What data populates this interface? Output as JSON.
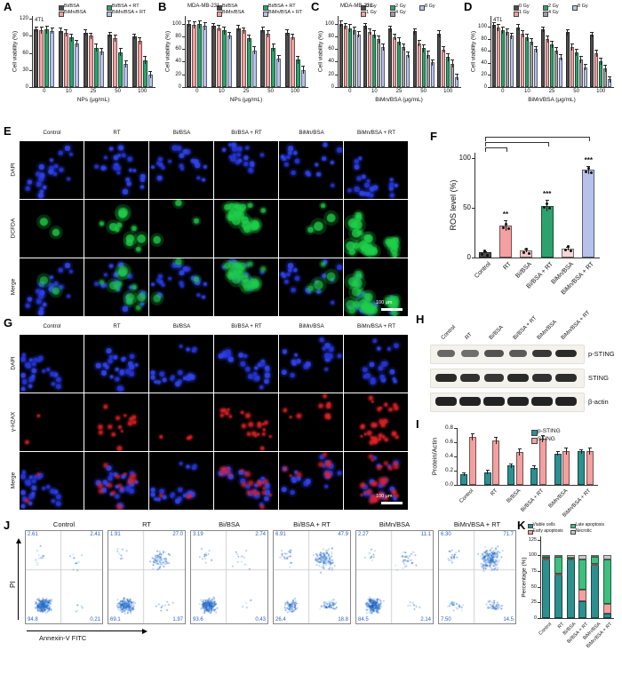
{
  "letters": {
    "A": "A",
    "B": "B",
    "C": "C",
    "D": "D",
    "E": "E",
    "F": "F",
    "G": "G",
    "H": "H",
    "I": "I",
    "J": "J",
    "K": "K"
  },
  "chart_data": [
    {
      "id": "A",
      "type": "bar",
      "title": "4T1",
      "xlabel": "NPs (μg/mL)",
      "ylabel": "Cell viability (%)",
      "ylim": [
        0,
        125
      ],
      "yticks": [
        0,
        30,
        60,
        90,
        120
      ],
      "categories": [
        "0",
        "10",
        "25",
        "50",
        "100"
      ],
      "series": [
        {
          "name": "Bi/BSA",
          "color": "#4d4d4d",
          "values": [
            102,
            99,
            96,
            92,
            89
          ],
          "err": 5
        },
        {
          "name": "BiMn/BSA",
          "color": "#f2a0a0",
          "values": [
            100,
            95,
            90,
            86,
            81
          ],
          "err": 6
        },
        {
          "name": "Bi/BSA + RT",
          "color": "#2ea26e",
          "values": [
            101,
            87,
            69,
            61,
            47
          ],
          "err": 7
        },
        {
          "name": "BiMn/BSA + RT",
          "color": "#b7c1ea",
          "values": [
            99,
            77,
            62,
            41,
            22
          ],
          "err": 6
        }
      ]
    },
    {
      "id": "B",
      "type": "bar",
      "title": "MDA-MB-231",
      "xlabel": "NPs (μg/mL)",
      "ylabel": "Cell viability (%)",
      "ylim": [
        0,
        112
      ],
      "yticks": [
        0,
        20,
        40,
        60,
        80,
        100
      ],
      "categories": [
        "0",
        "10",
        "25",
        "50",
        "100"
      ],
      "series": [
        {
          "name": "Bi/BSA",
          "color": "#4d4d4d",
          "values": [
            100,
            96,
            93,
            90,
            86
          ],
          "err": 5
        },
        {
          "name": "BiMn/BSA",
          "color": "#f2a0a0",
          "values": [
            98,
            93,
            89,
            84,
            79
          ],
          "err": 5
        },
        {
          "name": "Bi/BSA + RT",
          "color": "#2ea26e",
          "values": [
            99,
            89,
            77,
            62,
            43
          ],
          "err": 6
        },
        {
          "name": "BiMn/BSA + RT",
          "color": "#b7c1ea",
          "values": [
            96,
            81,
            58,
            45,
            27
          ],
          "err": 6
        }
      ]
    },
    {
      "id": "C",
      "type": "bar",
      "title": "MDA-MB-231",
      "xlabel": "BiMn/BSA (μg/mL)",
      "ylabel": "Cell viability (%)",
      "ylim": [
        0,
        112
      ],
      "yticks": [
        0,
        20,
        40,
        60,
        80,
        100
      ],
      "categories": [
        "0",
        "10",
        "25",
        "50",
        "100"
      ],
      "series": [
        {
          "name": "0 Gy",
          "color": "#4d4d4d",
          "values": [
            100,
            96,
            92,
            88,
            84
          ],
          "err": 5
        },
        {
          "name": "1 Gy",
          "color": "#f2a0a0",
          "values": [
            96,
            87,
            79,
            69,
            59
          ],
          "err": 5
        },
        {
          "name": "2 Gy",
          "color": "#2ea26e",
          "values": [
            93,
            83,
            72,
            61,
            47
          ],
          "err": 6
        },
        {
          "name": "4 Gy",
          "color": "#9e9e9e",
          "values": [
            89,
            75,
            63,
            51,
            37
          ],
          "err": 6
        },
        {
          "name": "8 Gy",
          "color": "#b7c1ea",
          "values": [
            83,
            63,
            51,
            39,
            16
          ],
          "err": 5
        }
      ]
    },
    {
      "id": "D",
      "type": "bar",
      "title": "4T1",
      "xlabel": "BiMn/BSA (μg/mL)",
      "ylabel": "Cell viability (%)",
      "ylim": [
        0,
        118
      ],
      "yticks": [
        0,
        20,
        40,
        60,
        80,
        100
      ],
      "categories": [
        "0",
        "10",
        "25",
        "50",
        "100"
      ],
      "series": [
        {
          "name": "0 Gy",
          "color": "#4d4d4d",
          "values": [
            103,
            99,
            96,
            91,
            87
          ],
          "err": 5
        },
        {
          "name": "1 Gy",
          "color": "#f2a0a0",
          "values": [
            99,
            89,
            79,
            67,
            56
          ],
          "err": 6
        },
        {
          "name": "2 Gy",
          "color": "#2ea26e",
          "values": [
            95,
            83,
            71,
            57,
            43
          ],
          "err": 6
        },
        {
          "name": "4 Gy",
          "color": "#9e9e9e",
          "values": [
            91,
            75,
            61,
            46,
            31
          ],
          "err": 6
        },
        {
          "name": "8 Gy",
          "color": "#b7c1ea",
          "values": [
            85,
            63,
            49,
            33,
            13
          ],
          "err": 5
        }
      ]
    },
    {
      "id": "F",
      "type": "bar",
      "ylabel": "ROS level (%)",
      "ylim": [
        0,
        105
      ],
      "yticks": [
        0,
        50,
        100
      ],
      "categories": [
        "Control",
        "RT",
        "Bi/BSA",
        "Bi/BSA + RT",
        "BiMn/BSA",
        "BiMn/BSA + RT"
      ],
      "values": [
        5,
        32,
        7,
        52,
        9,
        88
      ],
      "errors": [
        1,
        5,
        2,
        6,
        2,
        4
      ],
      "bar_colors": [
        "#4d4d4d",
        "#f2a0a0",
        "#efc9c9",
        "#2ea26e",
        "#f3d6d6",
        "#b7c1ea"
      ],
      "significance": [
        "",
        "**",
        "",
        "***",
        "",
        "***"
      ]
    },
    {
      "id": "I",
      "type": "bar",
      "ylabel": "Protein/Actin",
      "ylim": [
        0,
        0.8
      ],
      "yticks": [
        "0.0",
        "0.2",
        "0.4",
        "0.6",
        "0.8"
      ],
      "categories": [
        "Control",
        "RT",
        "Bi/BSA",
        "Bi/BSA + RT",
        "BiMn/BSA",
        "BiMn/BSA + RT"
      ],
      "series": [
        {
          "name": "p-STING",
          "color": "#2e8f8f",
          "values": [
            0.15,
            0.18,
            0.27,
            0.24,
            0.44,
            0.47
          ],
          "err": 0.03
        },
        {
          "name": "STING",
          "color": "#f2a0a0",
          "values": [
            0.68,
            0.63,
            0.46,
            0.65,
            0.47,
            0.48
          ],
          "err": 0.05
        }
      ]
    },
    {
      "id": "K",
      "type": "stacked-bar",
      "ylabel": "Percentage (%)",
      "ylim": [
        0,
        130
      ],
      "yticks": [
        0,
        25,
        50,
        75,
        100,
        125
      ],
      "categories": [
        "Control",
        "RT",
        "Bi/BSA",
        "Bi/BSA + RT",
        "BiMn/BSA",
        "BiMn/BSA + RT"
      ],
      "series": [
        {
          "name": "Viable cells",
          "color": "#2e8f8f",
          "values": [
            94.8,
            69.1,
            93.6,
            26.4,
            84.5,
            7.5
          ]
        },
        {
          "name": "Early apoptosis",
          "color": "#f2a0a0",
          "values": [
            0.21,
            1.97,
            0.43,
            18.8,
            2.14,
            14.5
          ]
        },
        {
          "name": "Late apoptosis",
          "color": "#3fbf7f",
          "values": [
            2.41,
            27.0,
            2.74,
            47.9,
            11.1,
            71.7
          ]
        },
        {
          "name": "Necrotic",
          "color": "#c9c9c9",
          "values": [
            2.61,
            1.91,
            3.19,
            6.91,
            2.27,
            6.3
          ]
        }
      ]
    }
  ],
  "microscopy": {
    "E": {
      "rows": [
        "DAPI",
        "DCFDA",
        "Merge"
      ],
      "columns": [
        "Control",
        "RT",
        "Bi/BSA",
        "Bi/BSA + RT",
        "BiMn/BSA",
        "BiMn/BSA + RT"
      ],
      "signal_intensity": [
        0.06,
        0.35,
        0.1,
        0.62,
        0.12,
        0.95
      ],
      "signal_color": "#1fd04a",
      "dapi_color": "#2a39d8",
      "scale_bar": "100 μm"
    },
    "G": {
      "rows": [
        "DAPI",
        "γ-H2AX",
        "Merge"
      ],
      "columns": [
        "Control",
        "RT",
        "Bi/BSA",
        "Bi/BSA + RT",
        "BiMn/BSA",
        "BiMn/BSA + RT"
      ],
      "signal_intensity": [
        0.05,
        0.45,
        0.1,
        0.7,
        0.3,
        0.95
      ],
      "signal_color": "#e62329",
      "dapi_color": "#2a39d8",
      "scale_bar": "100 μm"
    }
  },
  "blot": {
    "lanes": [
      "Control",
      "RT",
      "Bi/BSA",
      "Bi/BSA + RT",
      "BiMn/BSA",
      "BiMn/BSA + RT"
    ],
    "bands": [
      {
        "label": "p-STING",
        "intensity": [
          0.45,
          0.4,
          0.6,
          0.55,
          0.8,
          0.9
        ]
      },
      {
        "label": "STING",
        "intensity": [
          0.9,
          0.85,
          0.8,
          0.9,
          0.85,
          0.88
        ]
      },
      {
        "label": "β-actin",
        "intensity": [
          0.95,
          0.95,
          0.95,
          0.95,
          0.95,
          0.95
        ]
      }
    ]
  },
  "flow": {
    "ylabel": "PI",
    "xlabel": "Annexin-V FITC",
    "panels": [
      {
        "title": "Control",
        "ul": "2.61",
        "ur": "2.41",
        "ll": "94.8",
        "lr": "0.21"
      },
      {
        "title": "RT",
        "ul": "1.91",
        "ur": "27.0",
        "ll": "69.1",
        "lr": "1.97"
      },
      {
        "title": "Bi/BSA",
        "ul": "3.19",
        "ur": "2.74",
        "ll": "93.6",
        "lr": "0.43"
      },
      {
        "title": "Bi/BSA + RT",
        "ul": "6.91",
        "ur": "47.9",
        "ll": "26.4",
        "lr": "18.8"
      },
      {
        "title": "BiMn/BSA",
        "ul": "2.27",
        "ur": "11.1",
        "ll": "84.5",
        "lr": "2.14"
      },
      {
        "title": "BiMn/BSA + RT",
        "ul": "6.30",
        "ur": "71.7",
        "ll": "7.50",
        "lr": "14.5"
      }
    ]
  }
}
